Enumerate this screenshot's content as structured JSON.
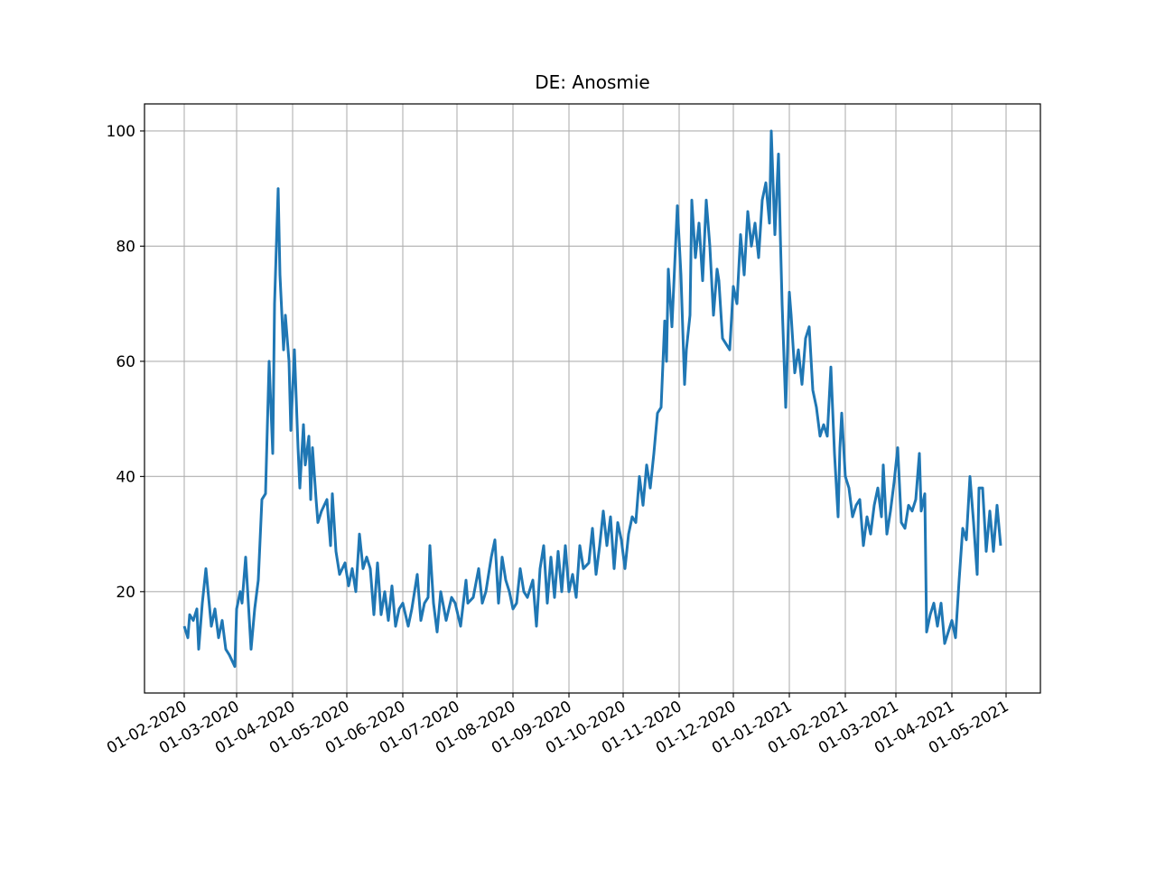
{
  "chart_data": {
    "type": "line",
    "title": "DE: Anosmie",
    "color": "#1f77b4",
    "grid": true,
    "xlim": [
      "2020-01-10",
      "2021-05-20"
    ],
    "xticks": [
      {
        "value": "2020-02-01",
        "label": "01-02-2020"
      },
      {
        "value": "2020-03-01",
        "label": "01-03-2020"
      },
      {
        "value": "2020-04-01",
        "label": "01-04-2020"
      },
      {
        "value": "2020-05-01",
        "label": "01-05-2020"
      },
      {
        "value": "2020-06-01",
        "label": "01-06-2020"
      },
      {
        "value": "2020-07-01",
        "label": "01-07-2020"
      },
      {
        "value": "2020-08-01",
        "label": "01-08-2020"
      },
      {
        "value": "2020-09-01",
        "label": "01-09-2020"
      },
      {
        "value": "2020-10-01",
        "label": "01-10-2020"
      },
      {
        "value": "2020-11-01",
        "label": "01-11-2020"
      },
      {
        "value": "2020-12-01",
        "label": "01-12-2020"
      },
      {
        "value": "2021-01-01",
        "label": "01-01-2021"
      },
      {
        "value": "2021-02-01",
        "label": "01-02-2021"
      },
      {
        "value": "2021-03-01",
        "label": "01-03-2021"
      },
      {
        "value": "2021-04-01",
        "label": "01-04-2021"
      },
      {
        "value": "2021-05-01",
        "label": "01-05-2021"
      }
    ],
    "ylim": [
      2.4,
      104.7
    ],
    "yticks": [
      20,
      40,
      60,
      80,
      100
    ],
    "x": [
      "2020-02-01",
      "2020-02-03",
      "2020-02-04",
      "2020-02-06",
      "2020-02-08",
      "2020-02-09",
      "2020-02-11",
      "2020-02-13",
      "2020-02-16",
      "2020-02-18",
      "2020-02-20",
      "2020-02-22",
      "2020-02-24",
      "2020-02-26",
      "2020-02-29",
      "2020-03-01",
      "2020-03-03",
      "2020-03-04",
      "2020-03-06",
      "2020-03-09",
      "2020-03-11",
      "2020-03-13",
      "2020-03-15",
      "2020-03-17",
      "2020-03-19",
      "2020-03-21",
      "2020-03-22",
      "2020-03-24",
      "2020-03-25",
      "2020-03-27",
      "2020-03-28",
      "2020-03-30",
      "2020-03-31",
      "2020-04-02",
      "2020-04-04",
      "2020-04-05",
      "2020-04-07",
      "2020-04-08",
      "2020-04-10",
      "2020-04-11",
      "2020-04-12",
      "2020-04-14",
      "2020-04-15",
      "2020-04-17",
      "2020-04-20",
      "2020-04-22",
      "2020-04-23",
      "2020-04-25",
      "2020-04-27",
      "2020-04-30",
      "2020-05-02",
      "2020-05-04",
      "2020-05-06",
      "2020-05-08",
      "2020-05-10",
      "2020-05-12",
      "2020-05-14",
      "2020-05-16",
      "2020-05-18",
      "2020-05-20",
      "2020-05-22",
      "2020-05-24",
      "2020-05-26",
      "2020-05-28",
      "2020-05-30",
      "2020-06-01",
      "2020-06-04",
      "2020-06-06",
      "2020-06-09",
      "2020-06-11",
      "2020-06-13",
      "2020-06-15",
      "2020-06-16",
      "2020-06-18",
      "2020-06-20",
      "2020-06-22",
      "2020-06-25",
      "2020-06-28",
      "2020-06-30",
      "2020-07-03",
      "2020-07-06",
      "2020-07-07",
      "2020-07-10",
      "2020-07-13",
      "2020-07-15",
      "2020-07-17",
      "2020-07-20",
      "2020-07-22",
      "2020-07-24",
      "2020-07-26",
      "2020-07-28",
      "2020-07-30",
      "2020-08-01",
      "2020-08-03",
      "2020-08-05",
      "2020-08-07",
      "2020-08-09",
      "2020-08-12",
      "2020-08-14",
      "2020-08-16",
      "2020-08-18",
      "2020-08-20",
      "2020-08-22",
      "2020-08-24",
      "2020-08-26",
      "2020-08-28",
      "2020-08-30",
      "2020-09-01",
      "2020-09-03",
      "2020-09-05",
      "2020-09-07",
      "2020-09-09",
      "2020-09-12",
      "2020-09-14",
      "2020-09-16",
      "2020-09-18",
      "2020-09-20",
      "2020-09-22",
      "2020-09-24",
      "2020-09-26",
      "2020-09-28",
      "2020-09-30",
      "2020-10-02",
      "2020-10-04",
      "2020-10-06",
      "2020-10-08",
      "2020-10-10",
      "2020-10-12",
      "2020-10-14",
      "2020-10-16",
      "2020-10-18",
      "2020-10-20",
      "2020-10-22",
      "2020-10-24",
      "2020-10-25",
      "2020-10-26",
      "2020-10-28",
      "2020-10-30",
      "2020-10-31",
      "2020-11-02",
      "2020-11-04",
      "2020-11-05",
      "2020-11-07",
      "2020-11-08",
      "2020-11-10",
      "2020-11-12",
      "2020-11-14",
      "2020-11-16",
      "2020-11-18",
      "2020-11-20",
      "2020-11-22",
      "2020-11-23",
      "2020-11-25",
      "2020-11-27",
      "2020-11-29",
      "2020-12-01",
      "2020-12-03",
      "2020-12-05",
      "2020-12-07",
      "2020-12-09",
      "2020-12-11",
      "2020-12-13",
      "2020-12-15",
      "2020-12-17",
      "2020-12-19",
      "2020-12-21",
      "2020-12-22",
      "2020-12-24",
      "2020-12-26",
      "2020-12-27",
      "2020-12-28",
      "2020-12-30",
      "2021-01-01",
      "2021-01-02",
      "2021-01-04",
      "2021-01-06",
      "2021-01-08",
      "2021-01-10",
      "2021-01-12",
      "2021-01-14",
      "2021-01-16",
      "2021-01-18",
      "2021-01-20",
      "2021-01-22",
      "2021-01-24",
      "2021-01-26",
      "2021-01-28",
      "2021-01-29",
      "2021-01-30",
      "2021-02-01",
      "2021-02-03",
      "2021-02-05",
      "2021-02-07",
      "2021-02-09",
      "2021-02-11",
      "2021-02-13",
      "2021-02-15",
      "2021-02-17",
      "2021-02-19",
      "2021-02-21",
      "2021-02-22",
      "2021-02-24",
      "2021-02-26",
      "2021-02-28",
      "2021-03-02",
      "2021-03-04",
      "2021-03-06",
      "2021-03-08",
      "2021-03-10",
      "2021-03-12",
      "2021-03-14",
      "2021-03-15",
      "2021-03-17",
      "2021-03-18",
      "2021-03-20",
      "2021-03-22",
      "2021-03-24",
      "2021-03-26",
      "2021-03-28",
      "2021-03-30",
      "2021-04-01",
      "2021-04-03",
      "2021-04-05",
      "2021-04-07",
      "2021-04-09",
      "2021-04-11",
      "2021-04-13",
      "2021-04-15",
      "2021-04-16",
      "2021-04-18",
      "2021-04-20",
      "2021-04-22",
      "2021-04-24",
      "2021-04-26",
      "2021-04-28"
    ],
    "values": [
      14,
      12,
      16,
      15,
      17,
      10,
      18,
      24,
      14,
      17,
      12,
      15,
      10,
      9,
      7,
      17,
      20,
      18,
      26,
      10,
      17,
      22,
      36,
      37,
      60,
      44,
      70,
      90,
      75,
      62,
      68,
      60,
      48,
      62,
      45,
      38,
      49,
      42,
      47,
      36,
      45,
      36,
      32,
      34,
      36,
      28,
      37,
      27,
      23,
      25,
      21,
      24,
      20,
      30,
      24,
      26,
      24,
      16,
      25,
      16,
      20,
      15,
      21,
      14,
      17,
      18,
      14,
      17,
      23,
      15,
      18,
      19,
      28,
      18,
      13,
      20,
      15,
      19,
      18,
      14,
      22,
      18,
      19,
      24,
      18,
      20,
      26,
      29,
      18,
      26,
      22,
      20,
      17,
      18,
      24,
      20,
      19,
      22,
      14,
      24,
      28,
      18,
      26,
      19,
      27,
      20,
      28,
      20,
      23,
      19,
      28,
      24,
      25,
      31,
      23,
      28,
      34,
      28,
      33,
      24,
      32,
      29,
      24,
      30,
      33,
      32,
      40,
      35,
      42,
      38,
      44,
      51,
      52,
      67,
      60,
      76,
      66,
      80,
      87,
      75,
      56,
      62,
      68,
      88,
      78,
      84,
      74,
      88,
      80,
      68,
      76,
      74,
      64,
      63,
      62,
      73,
      70,
      82,
      75,
      86,
      80,
      84,
      78,
      88,
      91,
      84,
      100,
      82,
      96,
      82,
      70,
      52,
      72,
      68,
      58,
      62,
      56,
      64,
      66,
      55,
      52,
      47,
      49,
      47,
      59,
      44,
      33,
      45,
      51,
      40,
      38,
      33,
      35,
      36,
      28,
      33,
      30,
      35,
      38,
      33,
      42,
      30,
      34,
      39,
      45,
      32,
      31,
      35,
      34,
      36,
      44,
      34,
      37,
      13,
      16,
      18,
      14,
      18,
      11,
      13,
      15,
      12,
      22,
      31,
      29,
      40,
      32,
      23,
      38,
      38,
      27,
      34,
      27,
      35,
      28
    ]
  }
}
